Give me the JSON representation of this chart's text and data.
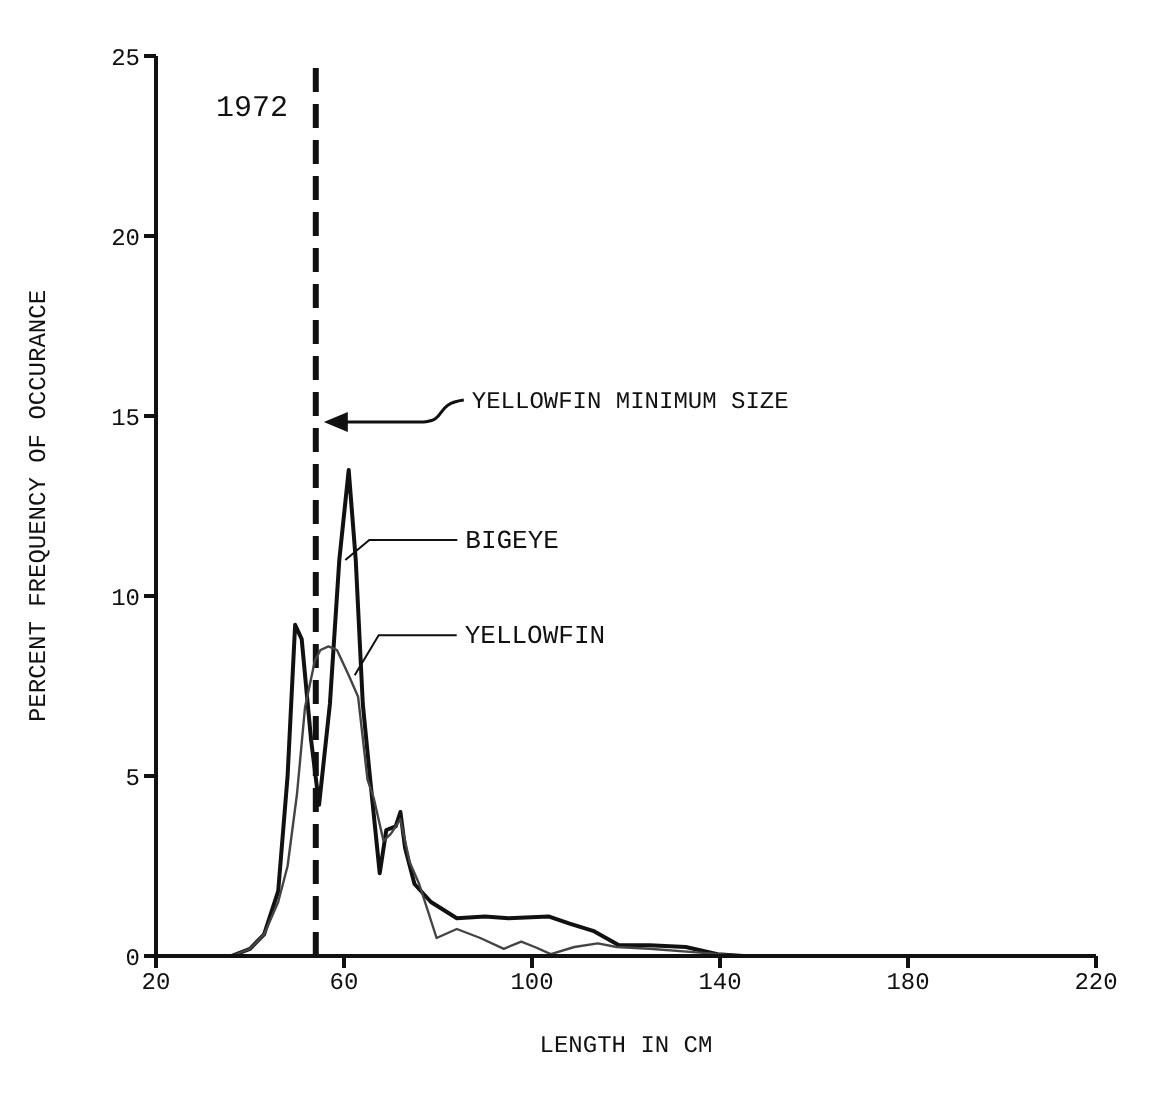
{
  "chart_data": {
    "type": "line",
    "title": "1972",
    "xlabel": "LENGTH IN CM",
    "ylabel": "PERCENT FREQUENCY OF OCCURANCE",
    "xlim": [
      20,
      220
    ],
    "xticks": [
      20,
      60,
      100,
      140,
      180,
      220
    ],
    "ylim": [
      0,
      25
    ],
    "yticks": [
      0,
      5,
      10,
      15,
      20,
      25
    ],
    "grid": false,
    "legend": "bottom left",
    "marker": "none",
    "series": [
      {
        "name": "BIGEYE",
        "color": "#111111",
        "x": [
          20,
          36,
          40,
          43,
          46,
          48,
          49.6,
          51,
          53,
          54.7,
          57,
          59,
          61,
          62.5,
          64,
          65.5,
          67.6,
          69,
          71,
          72,
          73,
          75,
          78.5,
          84,
          90,
          95,
          103.5,
          108,
          113,
          118.5,
          125,
          132.7,
          139.5,
          145
        ],
        "values": [
          0,
          0,
          0.2,
          0.6,
          1.8,
          5,
          9.2,
          8.8,
          6,
          4.2,
          7,
          11,
          13.5,
          11,
          7,
          5,
          2.3,
          3.5,
          3.6,
          4,
          3,
          2,
          1.5,
          1.05,
          1.1,
          1.05,
          1.1,
          0.9,
          0.7,
          0.3,
          0.3,
          0.25,
          0.05,
          0
        ]
      },
      {
        "name": "YELLOWFIN",
        "color": "#444444",
        "x": [
          20,
          36,
          40,
          43,
          46,
          48,
          50,
          51.7,
          53.8,
          55,
          56.7,
          58.5,
          61,
          63,
          65,
          66.3,
          68.4,
          70,
          72,
          74,
          76,
          79.7,
          84,
          89,
          94,
          97.7,
          100.6,
          104,
          109,
          114,
          118,
          125,
          135,
          145
        ],
        "values": [
          0,
          0,
          0.2,
          0.6,
          1.5,
          2.5,
          4.5,
          6.9,
          8.2,
          8.5,
          8.6,
          8.5,
          7.8,
          7.2,
          4.9,
          4.4,
          3.2,
          3.4,
          3.8,
          2.6,
          2,
          0.5,
          0.75,
          0.5,
          0.2,
          0.4,
          0.25,
          0.05,
          0.25,
          0.35,
          0.25,
          0.2,
          0.1,
          0
        ]
      }
    ],
    "ref_lines": [
      {
        "axis": "x",
        "value": 54,
        "color": "#111111",
        "line_style": "dashed"
      }
    ],
    "annotations": [
      "YELLOWFIN MINIMUM SIZE"
    ]
  }
}
